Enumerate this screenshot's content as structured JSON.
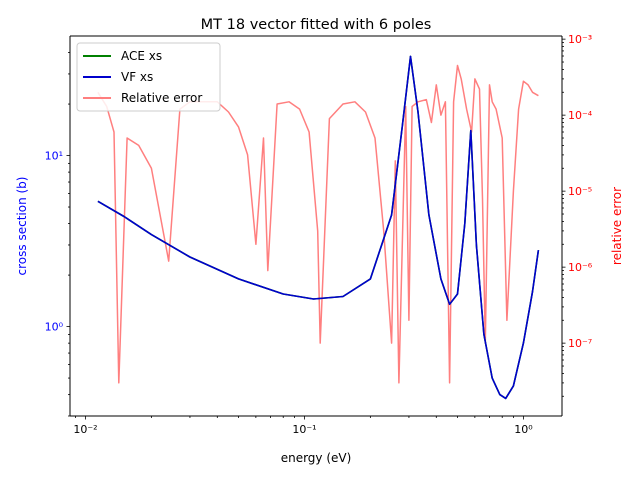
{
  "chart_data": {
    "type": "line",
    "title": "MT 18 vector fitted with 6 poles",
    "xlabel": "energy (eV)",
    "ylabel_left": "cross section (b)",
    "ylabel_right": "relative error",
    "x_scale": "log",
    "y_left_scale": "log",
    "y_right_scale": "log",
    "xlim": [
      0.0085,
      1.5
    ],
    "ylim_left": [
      0.3,
      50
    ],
    "ylim_right": [
      1.1e-08,
      0.0011
    ],
    "x_ticks": [
      {
        "value": 0.01,
        "label": "10⁻²"
      },
      {
        "value": 0.1,
        "label": "10⁻¹"
      },
      {
        "value": 1,
        "label": "10⁰"
      }
    ],
    "y_left_ticks": [
      {
        "value": 1,
        "label": "10⁰"
      },
      {
        "value": 10,
        "label": "10¹"
      }
    ],
    "y_right_ticks": [
      {
        "value": 1e-07,
        "label": "10⁻⁷"
      },
      {
        "value": 1e-06,
        "label": "10⁻⁶"
      },
      {
        "value": 1e-05,
        "label": "10⁻⁵"
      },
      {
        "value": 0.0001,
        "label": "10⁻⁴"
      },
      {
        "value": 0.001,
        "label": "10⁻³"
      }
    ],
    "grid": false,
    "legend_position": "top-left",
    "colors": {
      "left_axis": "#0000ff",
      "right_axis": "#ff0000"
    },
    "series": [
      {
        "name": "ACE xs",
        "axis": "left",
        "color": "#008000",
        "x": [
          0.0114,
          0.015,
          0.02,
          0.03,
          0.05,
          0.08,
          0.11,
          0.15,
          0.2,
          0.25,
          0.28,
          0.305,
          0.33,
          0.37,
          0.42,
          0.46,
          0.5,
          0.54,
          0.575,
          0.61,
          0.66,
          0.72,
          0.78,
          0.83,
          0.9,
          1.0,
          1.1,
          1.17
        ],
        "y": [
          5.4,
          4.4,
          3.45,
          2.55,
          1.9,
          1.55,
          1.45,
          1.5,
          1.9,
          4.5,
          15,
          38,
          18,
          4.5,
          1.9,
          1.35,
          1.55,
          4.0,
          14,
          3.0,
          0.9,
          0.5,
          0.4,
          0.38,
          0.45,
          0.8,
          1.6,
          2.8
        ]
      },
      {
        "name": "VF xs",
        "axis": "left",
        "color": "#0000cc",
        "x": [
          0.0114,
          0.015,
          0.02,
          0.03,
          0.05,
          0.08,
          0.11,
          0.15,
          0.2,
          0.25,
          0.28,
          0.305,
          0.33,
          0.37,
          0.42,
          0.46,
          0.5,
          0.54,
          0.575,
          0.61,
          0.66,
          0.72,
          0.78,
          0.83,
          0.9,
          1.0,
          1.1,
          1.17
        ],
        "y": [
          5.4,
          4.4,
          3.45,
          2.55,
          1.9,
          1.55,
          1.45,
          1.5,
          1.9,
          4.5,
          15,
          38,
          18,
          4.5,
          1.9,
          1.35,
          1.55,
          4.0,
          14,
          3.0,
          0.9,
          0.5,
          0.4,
          0.38,
          0.45,
          0.8,
          1.6,
          2.8
        ]
      },
      {
        "name": "Relative error",
        "axis": "right",
        "color": "#ff7f7f",
        "x": [
          0.0114,
          0.0125,
          0.0135,
          0.0142,
          0.0155,
          0.0175,
          0.02,
          0.024,
          0.027,
          0.03,
          0.035,
          0.04,
          0.045,
          0.05,
          0.055,
          0.06,
          0.065,
          0.068,
          0.075,
          0.085,
          0.095,
          0.105,
          0.115,
          0.118,
          0.13,
          0.15,
          0.17,
          0.19,
          0.21,
          0.23,
          0.25,
          0.26,
          0.27,
          0.29,
          0.3,
          0.31,
          0.33,
          0.36,
          0.38,
          0.4,
          0.42,
          0.44,
          0.46,
          0.48,
          0.5,
          0.52,
          0.55,
          0.58,
          0.6,
          0.63,
          0.65,
          0.67,
          0.7,
          0.72,
          0.75,
          0.8,
          0.84,
          0.9,
          0.95,
          1.0,
          1.05,
          1.1,
          1.17
        ],
        "y": [
          0.0002,
          0.00013,
          6e-05,
          3e-08,
          5e-05,
          4e-05,
          2e-05,
          1.2e-06,
          0.00012,
          0.00015,
          0.00015,
          0.00015,
          0.00011,
          7e-05,
          3e-05,
          2e-06,
          5e-05,
          9e-07,
          0.00014,
          0.00015,
          0.00012,
          6e-05,
          3e-06,
          1e-07,
          9e-05,
          0.00014,
          0.00015,
          0.00011,
          5e-05,
          3e-06,
          1e-07,
          2.5e-05,
          3e-08,
          0.00013,
          2e-07,
          0.00013,
          0.00015,
          0.00016,
          8e-05,
          0.00025,
          0.0001,
          0.00015,
          3e-08,
          0.00015,
          0.00045,
          0.0003,
          0.00012,
          6e-05,
          0.0003,
          0.00022,
          8e-06,
          1e-07,
          0.00025,
          0.00015,
          0.00012,
          5e-05,
          2e-07,
          1e-05,
          0.00012,
          0.00028,
          0.00025,
          0.0002,
          0.00018
        ]
      }
    ]
  }
}
